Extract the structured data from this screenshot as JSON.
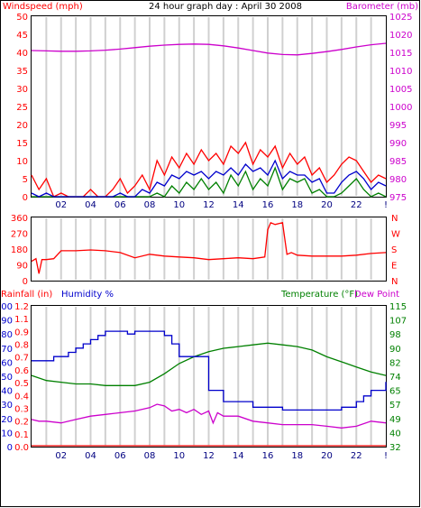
{
  "chart_data": [
    {
      "type": "line",
      "title": "24 hour graph day : April 30 2008",
      "left_axis_label": "Windspeed (mph)",
      "right_axis_label": "Barometer (mb)",
      "left_ticks": [
        "0",
        "5",
        "10",
        "15",
        "20",
        "25",
        "30",
        "35",
        "40",
        "45",
        "50"
      ],
      "left_range": [
        0,
        50
      ],
      "right_ticks": [
        "975",
        "980",
        "985",
        "990",
        "995",
        "1000",
        "1005",
        "1010",
        "1015",
        "1020",
        "1025"
      ],
      "right_range": [
        975,
        1025
      ],
      "x_ticks": [
        "02",
        "04",
        "06",
        "08",
        "10",
        "12",
        "14",
        "16",
        "18",
        "20",
        "22",
        "!"
      ],
      "x_range": [
        0,
        24
      ],
      "grid": "vertical",
      "colors": {
        "gust": "#ff0000",
        "average": "#0000cc",
        "lull": "#008000",
        "barometer": "#cc00cc",
        "axis_left": "#ff0000",
        "axis_right": "#cc00cc"
      },
      "series": [
        {
          "key": "barometer",
          "axis": "right",
          "x": [
            0,
            1,
            2,
            3,
            4,
            5,
            6,
            7,
            8,
            9,
            10,
            11,
            12,
            13,
            14,
            15,
            16,
            17,
            18,
            19,
            20,
            21,
            22,
            23,
            24
          ],
          "values": [
            1015.5,
            1015.4,
            1015.3,
            1015.3,
            1015.4,
            1015.6,
            1015.9,
            1016.3,
            1016.7,
            1017,
            1017.2,
            1017.3,
            1017.2,
            1016.8,
            1016.2,
            1015.5,
            1014.8,
            1014.4,
            1014.3,
            1014.7,
            1015.2,
            1015.8,
            1016.5,
            1017.1,
            1017.5
          ]
        },
        {
          "key": "gust",
          "axis": "left",
          "x": [
            0,
            0.5,
            1,
            1.5,
            2,
            2.5,
            3,
            3.5,
            4,
            4.5,
            5,
            5.5,
            6,
            6.5,
            7,
            7.5,
            8,
            8.5,
            9,
            9.5,
            10,
            10.5,
            11,
            11.5,
            12,
            12.5,
            13,
            13.5,
            14,
            14.5,
            15,
            15.5,
            16,
            16.5,
            17,
            17.5,
            18,
            18.5,
            19,
            19.5,
            20,
            20.5,
            21,
            21.5,
            22,
            22.5,
            23,
            23.5,
            24
          ],
          "values": [
            6,
            2,
            5,
            0,
            1,
            0,
            0,
            0,
            2,
            0,
            0,
            2,
            5,
            1,
            3,
            6,
            2,
            10,
            6,
            11,
            8,
            12,
            9,
            13,
            10,
            12,
            9,
            14,
            12,
            15,
            9,
            13,
            11,
            14,
            8,
            12,
            9,
            11,
            6,
            8,
            4,
            6,
            9,
            11,
            10,
            7,
            4,
            6,
            5
          ]
        },
        {
          "key": "average",
          "axis": "left",
          "x": [
            0,
            0.5,
            1,
            1.5,
            2,
            2.5,
            3,
            3.5,
            4,
            4.5,
            5,
            5.5,
            6,
            6.5,
            7,
            7.5,
            8,
            8.5,
            9,
            9.5,
            10,
            10.5,
            11,
            11.5,
            12,
            12.5,
            13,
            13.5,
            14,
            14.5,
            15,
            15.5,
            16,
            16.5,
            17,
            17.5,
            18,
            18.5,
            19,
            19.5,
            20,
            20.5,
            21,
            21.5,
            22,
            22.5,
            23,
            23.5,
            24
          ],
          "values": [
            1,
            0,
            1,
            0,
            0,
            0,
            0,
            0,
            0,
            0,
            0,
            0,
            1,
            0,
            0,
            2,
            1,
            4,
            3,
            6,
            5,
            7,
            6,
            7,
            5,
            7,
            6,
            8,
            6,
            9,
            7,
            8,
            6,
            10,
            5,
            7,
            6,
            6,
            4,
            5,
            1,
            1,
            4,
            6,
            7,
            5,
            2,
            4,
            3
          ]
        },
        {
          "key": "lull",
          "axis": "left",
          "x": [
            0,
            0.5,
            1,
            1.5,
            2,
            2.5,
            3,
            3.5,
            4,
            4.5,
            5,
            5.5,
            6,
            6.5,
            7,
            7.5,
            8,
            8.5,
            9,
            9.5,
            10,
            10.5,
            11,
            11.5,
            12,
            12.5,
            13,
            13.5,
            14,
            14.5,
            15,
            15.5,
            16,
            16.5,
            17,
            17.5,
            18,
            18.5,
            19,
            19.5,
            20,
            20.5,
            21,
            21.5,
            22,
            22.5,
            23,
            23.5,
            24
          ],
          "values": [
            0,
            0,
            0,
            0,
            0,
            0,
            0,
            0,
            0,
            0,
            0,
            0,
            0,
            0,
            0,
            0,
            0,
            1,
            0,
            3,
            1,
            4,
            2,
            5,
            2,
            4,
            1,
            6,
            3,
            7,
            2,
            5,
            3,
            8,
            2,
            5,
            4,
            5,
            1,
            2,
            0,
            0,
            1,
            3,
            5,
            2,
            0,
            1,
            0
          ]
        }
      ]
    },
    {
      "type": "line",
      "left_ticks": [
        "360",
        "270",
        "180",
        "90",
        "0"
      ],
      "left_range": [
        0,
        360
      ],
      "right_ticks": [
        "N",
        "W",
        "S",
        "E",
        "N"
      ],
      "x_range": [
        0,
        24
      ],
      "colors": {
        "direction": "#ff0000",
        "axis_left": "#ff0000",
        "axis_right": "#ff0000"
      },
      "series": [
        {
          "key": "direction",
          "x": [
            0,
            0.3,
            0.5,
            0.7,
            1,
            1.5,
            2,
            3,
            4,
            5,
            6,
            7,
            8,
            9,
            10,
            11,
            12,
            13,
            14,
            15,
            15.8,
            16,
            16.2,
            16.5,
            17,
            17.3,
            17.6,
            18,
            19,
            20,
            21,
            22,
            23,
            24
          ],
          "values": [
            110,
            125,
            40,
            120,
            120,
            125,
            170,
            170,
            175,
            170,
            160,
            130,
            150,
            140,
            135,
            130,
            120,
            125,
            130,
            125,
            135,
            290,
            330,
            320,
            330,
            150,
            160,
            145,
            140,
            140,
            140,
            145,
            155,
            160
          ]
        }
      ]
    },
    {
      "type": "line",
      "labels": {
        "rainfall": "Rainfall (in)",
        "humidity": "Humidity %",
        "temperature": "Temperature (°F)",
        "dewpoint": "Dew Point"
      },
      "humidity_ticks": [
        "0",
        "10",
        "20",
        "30",
        "40",
        "50",
        "60",
        "70",
        "80",
        "90",
        "100"
      ],
      "rain_ticks": [
        "0.0",
        "0.1",
        "0.2",
        "0.3",
        "0.4",
        "0.5",
        "0.6",
        "0.7",
        "0.8",
        "0.9",
        "1.1",
        "1.2"
      ],
      "temp_ticks": [
        "32",
        "40",
        "49",
        "57",
        "65",
        "74",
        "82",
        "90",
        "98",
        "107",
        "115"
      ],
      "temp_range": [
        32,
        115
      ],
      "humidity_range": [
        0,
        100
      ],
      "x_ticks": [
        "02",
        "04",
        "06",
        "08",
        "10",
        "12",
        "14",
        "16",
        "18",
        "20",
        "22",
        "!"
      ],
      "x_range": [
        0,
        24
      ],
      "colors": {
        "rainfall": "#ff0000",
        "humidity": "#0000cc",
        "temperature": "#008000",
        "dewpoint": "#cc00cc",
        "axis_humidity": "#0000cc",
        "axis_rain": "#ff0000",
        "axis_temp": "#008000"
      },
      "series": [
        {
          "key": "humidity",
          "axis": "humidity",
          "step": true,
          "x": [
            0,
            1,
            1.5,
            2,
            2.5,
            3,
            3.5,
            4,
            4.5,
            5,
            6,
            6.5,
            7,
            8,
            9,
            9.5,
            10,
            11,
            12,
            12.5,
            13,
            14,
            15,
            16,
            17,
            18,
            19,
            20,
            21,
            22,
            22.5,
            23,
            24
          ],
          "values": [
            61,
            61,
            64,
            64,
            67,
            70,
            73,
            76,
            79,
            82,
            82,
            80,
            82,
            82,
            79,
            73,
            64,
            64,
            40,
            40,
            32,
            32,
            28,
            28,
            26,
            26,
            26,
            26,
            28,
            32,
            36,
            40,
            46
          ]
        },
        {
          "key": "temperature",
          "axis": "temp",
          "x": [
            0,
            1,
            2,
            3,
            4,
            5,
            6,
            7,
            8,
            9,
            10,
            11,
            12,
            13,
            14,
            15,
            16,
            17,
            18,
            19,
            20,
            21,
            22,
            23,
            24
          ],
          "values": [
            74,
            71,
            70,
            69,
            69,
            68,
            68,
            68,
            70,
            75,
            81,
            85,
            88,
            90,
            91,
            92,
            93,
            92,
            91,
            89,
            85,
            82,
            79,
            76,
            74
          ]
        },
        {
          "key": "dewpoint",
          "axis": "temp",
          "x": [
            0,
            0.5,
            1,
            2,
            3,
            4,
            5,
            6,
            7,
            8,
            8.5,
            9,
            9.5,
            10,
            10.5,
            11,
            11.5,
            12,
            12.3,
            12.6,
            13,
            14,
            15,
            16,
            17,
            18,
            19,
            20,
            21,
            22,
            23,
            24
          ],
          "values": [
            48,
            47,
            47,
            46,
            48,
            50,
            51,
            52,
            53,
            55,
            57,
            56,
            53,
            54,
            52,
            54,
            51,
            53,
            46,
            52,
            50,
            50,
            47,
            46,
            45,
            45,
            45,
            44,
            43,
            44,
            47,
            46
          ]
        },
        {
          "key": "rainfall",
          "axis": "rain",
          "x": [
            0,
            24
          ],
          "values": [
            0,
            0
          ]
        }
      ]
    }
  ]
}
